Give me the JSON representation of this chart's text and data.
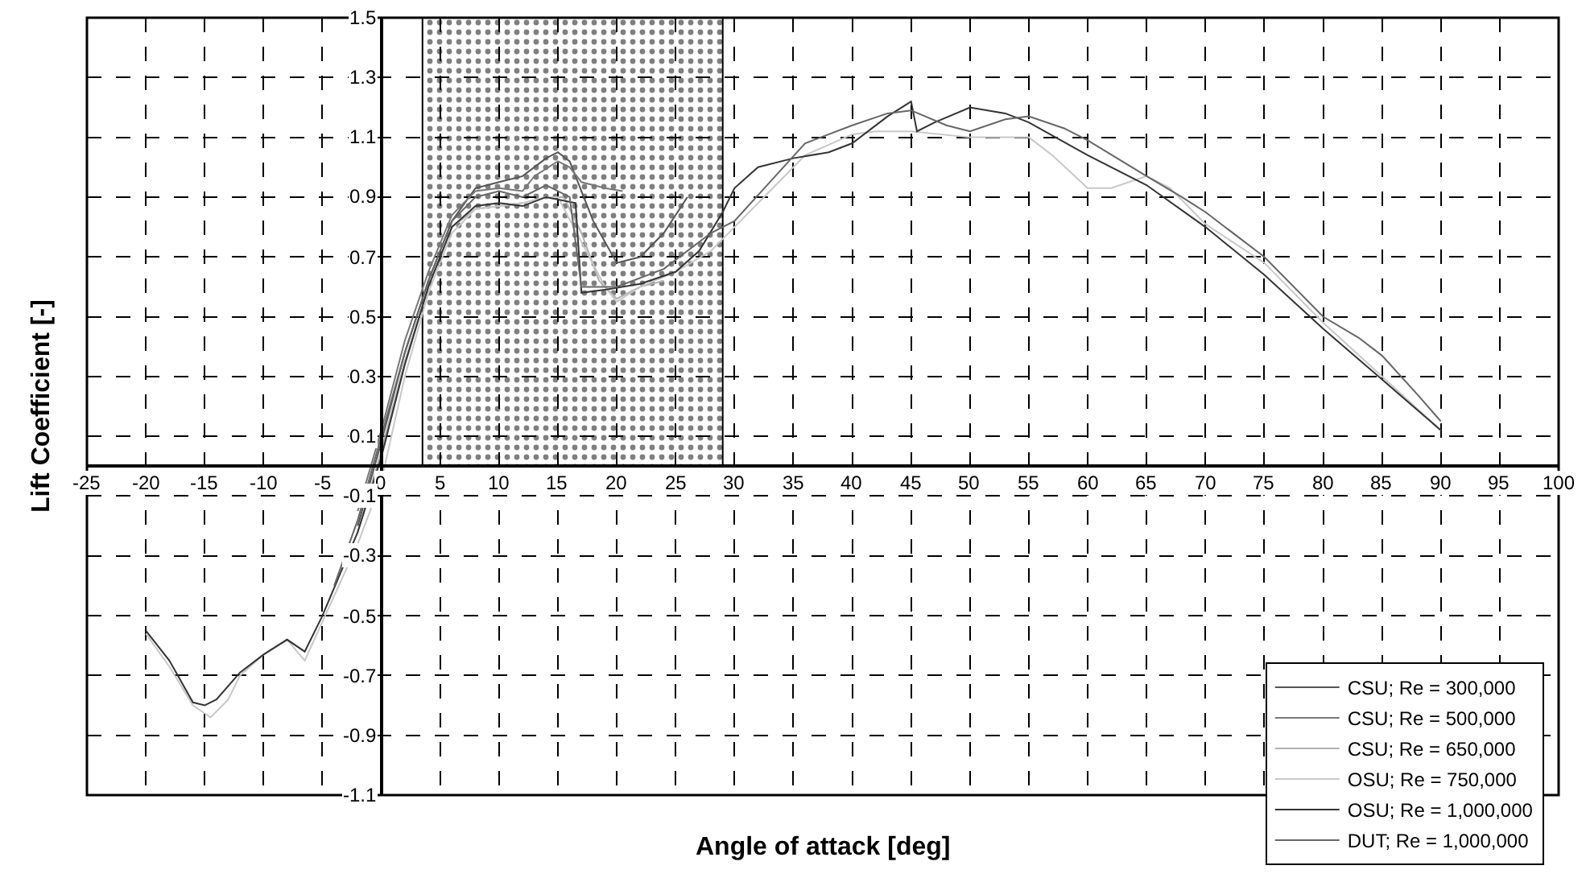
{
  "chart_data": {
    "type": "line",
    "xlabel": "Angle of attack [deg]",
    "ylabel": "Lift Coefficient [-]",
    "xlim": [
      -25,
      100
    ],
    "xticks": [
      -25,
      -20,
      -15,
      -10,
      -5,
      0,
      5,
      10,
      15,
      20,
      25,
      30,
      35,
      40,
      45,
      50,
      55,
      60,
      65,
      70,
      75,
      80,
      85,
      90,
      95,
      100
    ],
    "ylim": [
      -1.1,
      1.5
    ],
    "yticks": [
      -1.1,
      -0.9,
      -0.7,
      -0.5,
      -0.3,
      -0.1,
      0.1,
      0.3,
      0.5,
      0.7,
      0.9,
      1.1,
      1.3,
      1.5
    ],
    "grid": true,
    "legend": "bottom right",
    "line_style": "solid",
    "marker": "none",
    "bands": [
      {
        "axis": "x",
        "from": 3.5,
        "to": 29,
        "color": "#000000"
      }
    ],
    "series": [
      {
        "name": "CSU; Re = 300,000",
        "color": "#555555",
        "x": [
          -2,
          0,
          2,
          4,
          6,
          8,
          10,
          12,
          14,
          15,
          16,
          18,
          20,
          22,
          24,
          26
        ],
        "values": [
          -0.2,
          0.08,
          0.38,
          0.62,
          0.82,
          0.93,
          0.95,
          0.97,
          1.03,
          1.05,
          1.02,
          0.82,
          0.68,
          0.7,
          0.78,
          0.9
        ]
      },
      {
        "name": "CSU; Re = 500,000",
        "color": "#777777",
        "x": [
          -2,
          0,
          2,
          4,
          6,
          8,
          10,
          12,
          13,
          15,
          16,
          17,
          19,
          20.5
        ],
        "values": [
          -0.15,
          0.12,
          0.42,
          0.65,
          0.84,
          0.92,
          0.93,
          0.92,
          0.97,
          1.02,
          1.0,
          0.95,
          0.93,
          0.92
        ]
      },
      {
        "name": "CSU; Re = 650,000",
        "color": "#b0b0b0",
        "x": [
          -2,
          0,
          2,
          4,
          6,
          8,
          10,
          12,
          14,
          15.5,
          17,
          18.5,
          20,
          22,
          24
        ],
        "values": [
          -0.22,
          0.05,
          0.35,
          0.6,
          0.8,
          0.86,
          0.87,
          0.88,
          0.9,
          0.9,
          0.78,
          0.62,
          0.56,
          0.6,
          0.62
        ]
      },
      {
        "name": "OSU; Re = 750,000",
        "color": "#c8c8c8",
        "x": [
          -20,
          -18,
          -16,
          -14.5,
          -13,
          -12,
          -10,
          -8,
          -6.5,
          -5,
          -2,
          0,
          2,
          4,
          6,
          8,
          10,
          12,
          14,
          15,
          17,
          19,
          20,
          22,
          25,
          28,
          30,
          33,
          36,
          40,
          42,
          45,
          50,
          55,
          57,
          60,
          62,
          65,
          67,
          70,
          75,
          80,
          85,
          90
        ],
        "values": [
          -0.56,
          -0.67,
          -0.8,
          -0.84,
          -0.78,
          -0.7,
          -0.63,
          -0.58,
          -0.65,
          -0.52,
          -0.26,
          -0.05,
          0.3,
          0.58,
          0.78,
          0.86,
          0.87,
          0.88,
          0.9,
          0.9,
          0.75,
          0.6,
          0.55,
          0.6,
          0.65,
          0.72,
          0.8,
          0.92,
          1.04,
          1.11,
          1.12,
          1.12,
          1.1,
          1.1,
          1.04,
          0.93,
          0.93,
          0.97,
          0.93,
          0.81,
          0.68,
          0.48,
          0.3,
          0.12
        ]
      },
      {
        "name": "OSU; Re = 1,000,000",
        "color": "#333333",
        "x": [
          -20,
          -18,
          -16,
          -15,
          -14,
          -12,
          -10,
          -8,
          -6.5,
          -5,
          -2,
          0,
          2,
          4,
          6,
          8,
          10,
          12,
          14,
          16.5,
          17,
          19,
          22,
          25,
          27,
          29,
          30,
          32,
          35,
          38,
          40,
          43,
          45,
          45.5,
          47,
          50,
          53,
          55,
          60,
          65,
          70,
          75,
          80,
          85,
          90
        ],
        "values": [
          -0.55,
          -0.65,
          -0.79,
          -0.8,
          -0.78,
          -0.69,
          -0.63,
          -0.58,
          -0.62,
          -0.5,
          -0.22,
          0.03,
          0.34,
          0.6,
          0.8,
          0.87,
          0.88,
          0.87,
          0.9,
          0.88,
          0.58,
          0.59,
          0.61,
          0.65,
          0.72,
          0.85,
          0.93,
          1.0,
          1.03,
          1.05,
          1.08,
          1.17,
          1.22,
          1.12,
          1.15,
          1.2,
          1.18,
          1.15,
          1.04,
          0.94,
          0.8,
          0.64,
          0.46,
          0.29,
          0.12
        ]
      },
      {
        "name": "DUT; Re = 1,000,000",
        "color": "#666666",
        "x": [
          -4,
          -2,
          0,
          2,
          4,
          6,
          8,
          10,
          12,
          14,
          16,
          17,
          20,
          24,
          28,
          30,
          33,
          36,
          40,
          43,
          45,
          48,
          50,
          53,
          55,
          58,
          60,
          65,
          68,
          70,
          75,
          80,
          83,
          85,
          88,
          90
        ],
        "values": [
          -0.4,
          -0.18,
          0.1,
          0.38,
          0.62,
          0.82,
          0.9,
          0.92,
          0.9,
          0.94,
          0.9,
          0.6,
          0.6,
          0.66,
          0.78,
          0.82,
          0.95,
          1.08,
          1.14,
          1.18,
          1.19,
          1.14,
          1.12,
          1.16,
          1.17,
          1.13,
          1.09,
          0.97,
          0.9,
          0.85,
          0.7,
          0.5,
          0.43,
          0.37,
          0.24,
          0.15
        ]
      }
    ]
  }
}
